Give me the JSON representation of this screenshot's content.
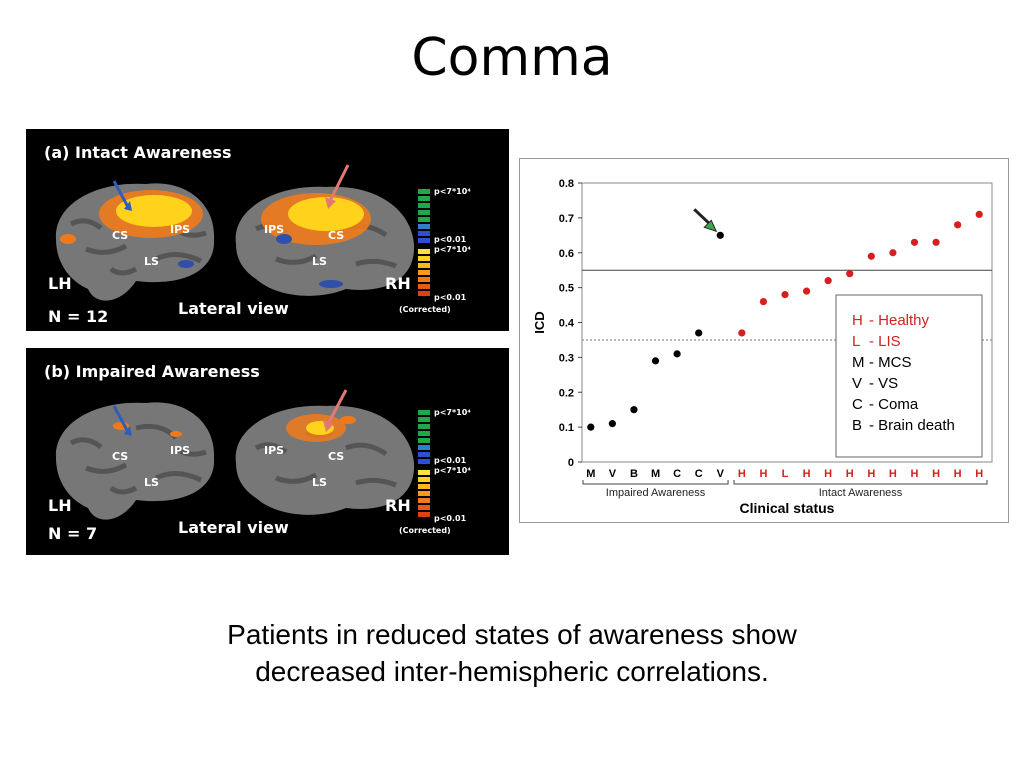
{
  "slide": {
    "title": "Comma",
    "caption": [
      "Patients in reduced states of awareness show",
      "decreased inter-hemispheric correlations."
    ]
  },
  "figure": {
    "panels": [
      {
        "title": "(a) Intact Awareness",
        "left_hemisphere": "LH",
        "right_hemisphere": "RH",
        "n_label": "N = 12",
        "view_label": "Lateral view",
        "sulci_left": [
          "CS",
          "IPS",
          "LS"
        ],
        "sulci_right": [
          "IPS",
          "CS",
          "LS"
        ],
        "colorbar": [
          "p<7*10⁴",
          "p<0.01",
          "p<7*10⁴",
          "p<0.01",
          "(Corrected)"
        ],
        "activation": "strong"
      },
      {
        "title": "(b) Impaired Awareness",
        "left_hemisphere": "LH",
        "right_hemisphere": "RH",
        "n_label": "N = 7",
        "view_label": "Lateral view",
        "sulci_left": [
          "CS",
          "IPS",
          "LS"
        ],
        "sulci_right": [
          "IPS",
          "CS",
          "LS"
        ],
        "colorbar": [
          "p<7*10⁴",
          "p<0.01",
          "p<7*10⁴",
          "p<0.01",
          "(Corrected)"
        ],
        "activation": "weak"
      }
    ],
    "colors": {
      "panel_bg": "#000000",
      "brain": "#7a7a7a",
      "activation_hot": "#ffd21c",
      "activation_warm": "#f07a1a",
      "arrow_left": "#2e5fb8",
      "arrow_right": "#e07a73"
    }
  },
  "chart_data": {
    "type": "scatter",
    "ylabel": "ICD",
    "xlabel": "Clinical status",
    "ylim": [
      0,
      0.8
    ],
    "yticks": [
      "0",
      "0.1",
      "0.2",
      "0.3",
      "0.4",
      "0.5",
      "0.6",
      "0.7",
      "0.8"
    ],
    "categories": [
      "M",
      "V",
      "B",
      "M",
      "C",
      "C",
      "V",
      "H",
      "H",
      "L",
      "H",
      "H",
      "H",
      "H",
      "H",
      "H",
      "H",
      "H",
      "H"
    ],
    "values": [
      0.1,
      0.11,
      0.15,
      0.29,
      0.31,
      0.37,
      0.65,
      0.37,
      0.46,
      0.48,
      0.49,
      0.52,
      0.54,
      0.59,
      0.6,
      0.63,
      0.63,
      0.68,
      0.71
    ],
    "point_colors": [
      "#000000",
      "#000000",
      "#000000",
      "#000000",
      "#000000",
      "#000000",
      "#000000",
      "#d42020",
      "#d42020",
      "#d42020",
      "#d42020",
      "#d42020",
      "#d42020",
      "#d42020",
      "#d42020",
      "#d42020",
      "#d42020",
      "#d42020",
      "#d42020"
    ],
    "highlighted_index": 6,
    "reference_lines": [
      {
        "y": 0.55,
        "style": "solid"
      },
      {
        "y": 0.35,
        "style": "dashed"
      }
    ],
    "groups": [
      {
        "label": "Impaired Awareness",
        "from": 0,
        "to": 6
      },
      {
        "label": "Intact Awareness",
        "from": 7,
        "to": 18
      }
    ],
    "legend": [
      {
        "code": "H",
        "text": "- Healthy",
        "color": "#d42020"
      },
      {
        "code": "L",
        "text": "- LIS",
        "color": "#d42020"
      },
      {
        "code": "M",
        "text": "- MCS",
        "color": "#000000"
      },
      {
        "code": "V",
        "text": "- VS",
        "color": "#000000"
      },
      {
        "code": "C",
        "text": "- Coma",
        "color": "#000000"
      },
      {
        "code": "B",
        "text": "- Brain death",
        "color": "#000000"
      }
    ],
    "legend_position": "bottom-right",
    "grid": false
  }
}
